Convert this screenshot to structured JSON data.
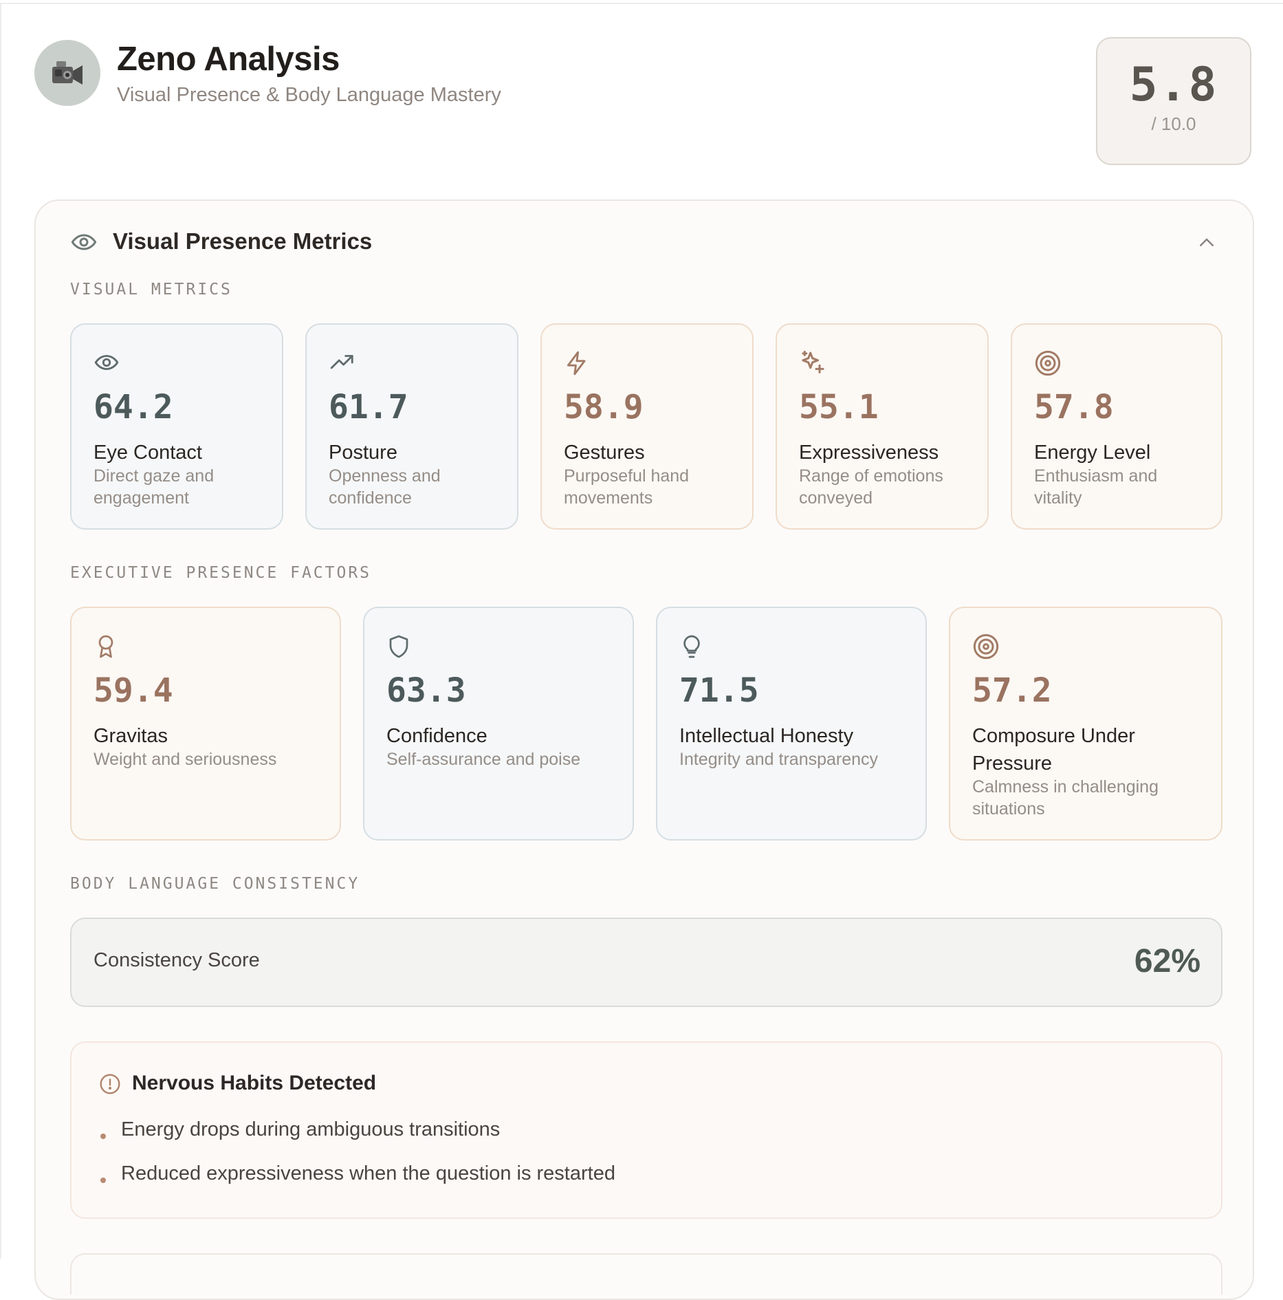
{
  "header": {
    "title": "Zeno Analysis",
    "subtitle": "Visual Presence & Body Language Mastery",
    "avatar_icon": "video-camera-icon",
    "overall_score": "5.8",
    "overall_max": "/ 10.0"
  },
  "panel": {
    "title": "Visual Presence Metrics",
    "title_icon": "eye-icon",
    "collapse_icon": "chevron-up-icon"
  },
  "visual_metrics": {
    "label": "VISUAL METRICS",
    "items": [
      {
        "icon": "eye-icon",
        "value": "64.2",
        "name": "Eye Contact",
        "desc": "Direct gaze and engagement",
        "tone": "cool"
      },
      {
        "icon": "trending-up-icon",
        "value": "61.7",
        "name": "Posture",
        "desc": "Openness and confidence",
        "tone": "cool"
      },
      {
        "icon": "lightning-icon",
        "value": "58.9",
        "name": "Gestures",
        "desc": "Purposeful hand movements",
        "tone": "warm"
      },
      {
        "icon": "sparkles-icon",
        "value": "55.1",
        "name": "Expressiveness",
        "desc": "Range of emotions conveyed",
        "tone": "warm"
      },
      {
        "icon": "target-icon",
        "value": "57.8",
        "name": "Energy Level",
        "desc": "Enthusiasm and vitality",
        "tone": "warm"
      }
    ]
  },
  "executive_factors": {
    "label": "EXECUTIVE PRESENCE FACTORS",
    "items": [
      {
        "icon": "award-icon",
        "value": "59.4",
        "name": "Gravitas",
        "desc": "Weight and seriousness",
        "tone": "warm"
      },
      {
        "icon": "shield-icon",
        "value": "63.3",
        "name": "Confidence",
        "desc": "Self-assurance and poise",
        "tone": "cool"
      },
      {
        "icon": "lightbulb-icon",
        "value": "71.5",
        "name": "Intellectual Honesty",
        "desc": "Integrity and transparency",
        "tone": "cool"
      },
      {
        "icon": "target-icon",
        "value": "57.2",
        "name": "Composure Under Pressure",
        "desc": "Calmness in challenging situations",
        "tone": "warm"
      }
    ]
  },
  "consistency": {
    "label": "BODY LANGUAGE CONSISTENCY",
    "score_label": "Consistency Score",
    "score_value": "62%"
  },
  "nervous_habits": {
    "title": "Nervous Habits Detected",
    "icon": "alert-circle-icon",
    "items": [
      "Energy drops during ambiguous transitions",
      "Reduced expressiveness when the question is restarted"
    ]
  }
}
